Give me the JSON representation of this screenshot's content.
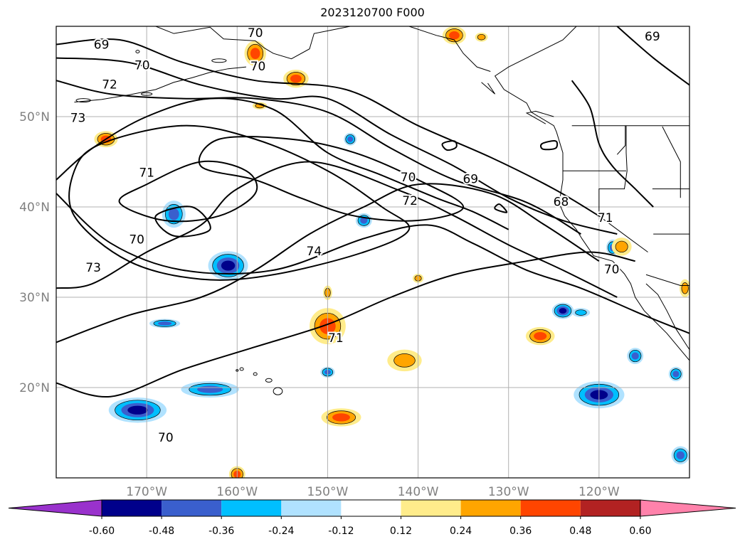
{
  "title": "2023120700 F000",
  "map": {
    "lat_labels": [
      {
        "text": "50°N",
        "lat": 50
      },
      {
        "text": "40°N",
        "lat": 40
      },
      {
        "text": "30°N",
        "lat": 30
      },
      {
        "text": "20°N",
        "lat": 20
      }
    ],
    "lon_labels": [
      {
        "text": "170°W",
        "lon": -170
      },
      {
        "text": "160°W",
        "lon": -160
      },
      {
        "text": "150°W",
        "lon": -150
      },
      {
        "text": "140°W",
        "lon": -140
      },
      {
        "text": "130°W",
        "lon": -130
      },
      {
        "text": "120°W",
        "lon": -120
      }
    ],
    "extent": {
      "lon_min": -180,
      "lon_max": -110,
      "lat_min": 10,
      "lat_max": 60
    },
    "grid": true,
    "contour_labels": [
      {
        "text": "69",
        "lon": -175,
        "lat": 58
      },
      {
        "text": "70",
        "lon": -158,
        "lat": 59.3
      },
      {
        "text": "70",
        "lon": -170.5,
        "lat": 55.7
      },
      {
        "text": "70",
        "lon": -157.7,
        "lat": 55.6
      },
      {
        "text": "72",
        "lon": -174.1,
        "lat": 53.6
      },
      {
        "text": "73",
        "lon": -177.6,
        "lat": 49.9
      },
      {
        "text": "71",
        "lon": -170,
        "lat": 43.8
      },
      {
        "text": "70",
        "lon": -171.1,
        "lat": 36.4
      },
      {
        "text": "73",
        "lon": -175.9,
        "lat": 33.3
      },
      {
        "text": "74",
        "lon": -151.5,
        "lat": 35.1
      },
      {
        "text": "70",
        "lon": -141.1,
        "lat": 43.3
      },
      {
        "text": "72",
        "lon": -140.9,
        "lat": 40.7
      },
      {
        "text": "69",
        "lon": -134.2,
        "lat": 43.1
      },
      {
        "text": "68",
        "lon": -124.2,
        "lat": 40.6
      },
      {
        "text": "71",
        "lon": -119.3,
        "lat": 38.8
      },
      {
        "text": "70",
        "lon": -118.6,
        "lat": 33.1
      },
      {
        "text": "69",
        "lon": -114.1,
        "lat": 58.9
      },
      {
        "text": "71",
        "lon": -149.1,
        "lat": 25.5
      },
      {
        "text": "70",
        "lon": -167.9,
        "lat": 14.5
      }
    ],
    "contour_color": "#000000",
    "land_color": "#000000",
    "grid_color": "#b0b0b0"
  },
  "colorbar": {
    "tick_labels": [
      "-0.60",
      "-0.48",
      "-0.36",
      "-0.24",
      "-0.12",
      "0.12",
      "0.24",
      "0.36",
      "0.48",
      "0.60"
    ],
    "levels": [
      -0.6,
      -0.48,
      -0.36,
      -0.24,
      -0.12,
      0.12,
      0.24,
      0.36,
      0.48,
      0.6
    ],
    "colors": [
      "#9932cc",
      "#00008b",
      "#3a5fcd",
      "#00bfff",
      "#b0e2ff",
      "#ffffff",
      "#ffec8b",
      "#ffa500",
      "#ff4500",
      "#b22222",
      "#ff82ab"
    ],
    "extend": "both"
  },
  "anomalies": [
    {
      "lon": -161,
      "lat": 33.5,
      "level": -0.48,
      "r": [
        2.2,
        1.6
      ]
    },
    {
      "lon": -167,
      "lat": 39.2,
      "level": -0.36,
      "r": [
        1.3,
        1.5
      ]
    },
    {
      "lon": -146,
      "lat": 38.5,
      "level": -0.36,
      "r": [
        0.9,
        0.8
      ]
    },
    {
      "lon": -147.5,
      "lat": 47.5,
      "level": -0.36,
      "r": [
        0.7,
        0.7
      ]
    },
    {
      "lon": -171,
      "lat": 17.5,
      "level": -0.48,
      "r": [
        3.2,
        1.4
      ]
    },
    {
      "lon": -163,
      "lat": 19.8,
      "level": -0.36,
      "r": [
        3.2,
        0.9
      ]
    },
    {
      "lon": -120,
      "lat": 19.2,
      "level": -0.48,
      "r": [
        2.8,
        1.5
      ]
    },
    {
      "lon": -124,
      "lat": 28.5,
      "level": -0.48,
      "r": [
        1.2,
        0.9
      ]
    },
    {
      "lon": -111.5,
      "lat": 21.5,
      "level": -0.36,
      "r": [
        0.8,
        0.8
      ]
    },
    {
      "lon": -168,
      "lat": 27.1,
      "level": -0.36,
      "r": [
        1.7,
        0.5
      ]
    },
    {
      "lon": -150,
      "lat": 21.7,
      "level": -0.36,
      "r": [
        0.8,
        0.6
      ]
    },
    {
      "lon": -122,
      "lat": 28.3,
      "level": -0.24,
      "r": [
        1.0,
        0.5
      ]
    },
    {
      "lon": -116,
      "lat": 23.5,
      "level": -0.36,
      "r": [
        0.9,
        0.9
      ]
    },
    {
      "lon": -111,
      "lat": 12.5,
      "level": -0.36,
      "r": [
        1.0,
        1.0
      ]
    },
    {
      "lon": -118.5,
      "lat": 35.5,
      "level": -0.36,
      "r": [
        0.7,
        0.9
      ]
    },
    {
      "lon": -150,
      "lat": 26.8,
      "level": 0.36,
      "r": [
        2.0,
        2.0
      ]
    },
    {
      "lon": -174.5,
      "lat": 47.5,
      "level": 0.36,
      "r": [
        1.3,
        0.9
      ]
    },
    {
      "lon": -158,
      "lat": 57,
      "level": 0.36,
      "r": [
        1.2,
        1.4
      ]
    },
    {
      "lon": -136,
      "lat": 59,
      "level": 0.36,
      "r": [
        1.3,
        1.0
      ]
    },
    {
      "lon": -153.5,
      "lat": 54.2,
      "level": 0.36,
      "r": [
        1.4,
        1.0
      ]
    },
    {
      "lon": -141.5,
      "lat": 23.0,
      "level": 0.24,
      "r": [
        1.9,
        1.2
      ]
    },
    {
      "lon": -148.5,
      "lat": 16.7,
      "level": 0.36,
      "r": [
        2.2,
        1.0
      ]
    },
    {
      "lon": -126.5,
      "lat": 25.7,
      "level": 0.36,
      "r": [
        1.6,
        1.0
      ]
    },
    {
      "lon": -117.5,
      "lat": 35.6,
      "level": 0.24,
      "r": [
        1.1,
        1.0
      ]
    },
    {
      "lon": -160,
      "lat": 10.4,
      "level": 0.36,
      "r": [
        0.9,
        0.9
      ]
    },
    {
      "lon": -110.5,
      "lat": 31.0,
      "level": 0.24,
      "r": [
        0.6,
        1.0
      ]
    },
    {
      "lon": -157.5,
      "lat": 51.2,
      "level": 0.24,
      "r": [
        0.8,
        0.4
      ]
    },
    {
      "lon": -150,
      "lat": 30.5,
      "level": 0.24,
      "r": [
        0.5,
        0.8
      ]
    },
    {
      "lon": -140,
      "lat": 32.1,
      "level": 0.24,
      "r": [
        0.6,
        0.5
      ]
    },
    {
      "lon": -133,
      "lat": 58.8,
      "level": 0.24,
      "r": [
        0.7,
        0.5
      ]
    }
  ]
}
